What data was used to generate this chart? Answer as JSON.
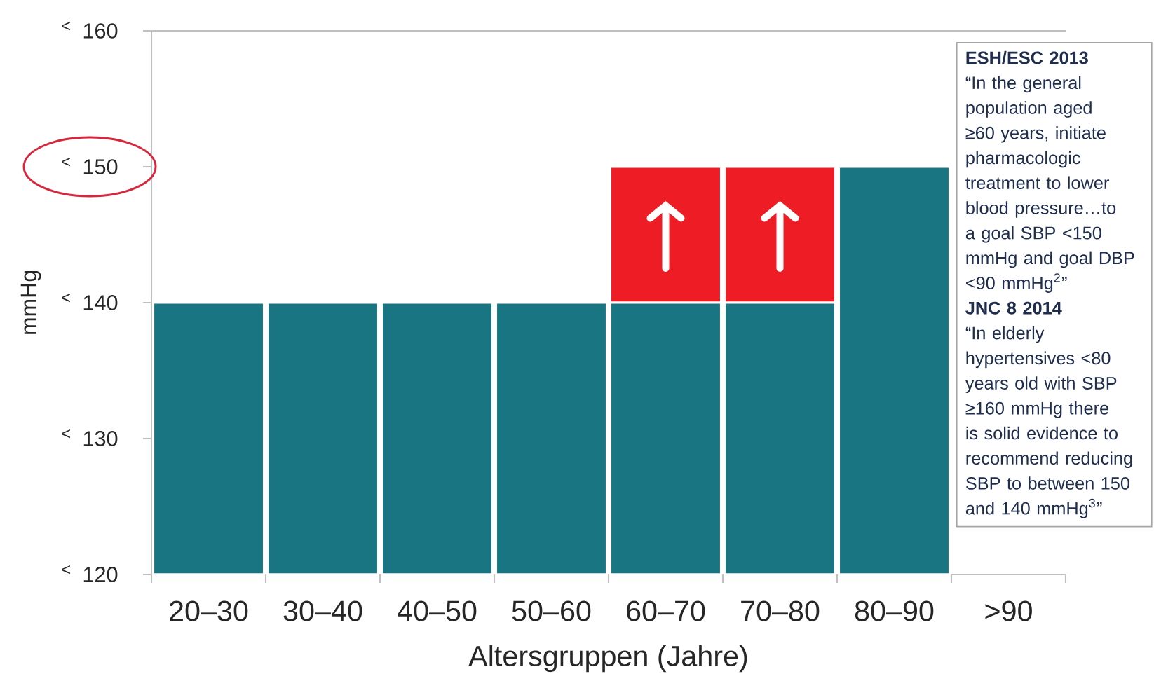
{
  "chart_data": {
    "type": "bar",
    "xlabel": "Altersgruppen (Jahre)",
    "ylabel": "mmHg",
    "categories": [
      "20–30",
      "30–40",
      "40–50",
      "50–60",
      "60–70",
      "70–80",
      "80–90",
      ">90"
    ],
    "series": [
      {
        "color": "#1a7583",
        "values": [
          140,
          140,
          140,
          140,
          140,
          140,
          150,
          null
        ]
      },
      {
        "color": "#ee1c25",
        "base": [
          null,
          null,
          null,
          null,
          140,
          140,
          null,
          null
        ],
        "values": [
          null,
          null,
          null,
          null,
          10,
          10,
          null,
          null
        ]
      }
    ],
    "ylim": [
      120,
      160
    ],
    "yticks": [
      120,
      130,
      140,
      150,
      160
    ],
    "annotations": [
      "<",
      "<",
      "<",
      "<",
      "<",
      "ESH/ESC 2013",
      "“In the general population aged ≥60 years, initiate pharmacologic treatment to lower blood pressure…to a goal SBP <150 mmHg and goal DBP <90 mmHg$^{2}$”",
      "JNC 8 2014",
      "“In elderly hypertensives <80 years old with SBP ≥160 mmHg there is solid evidence to recommend reducing SBP to between 150 and 140 mmHg$^{3}$”"
    ]
  }
}
